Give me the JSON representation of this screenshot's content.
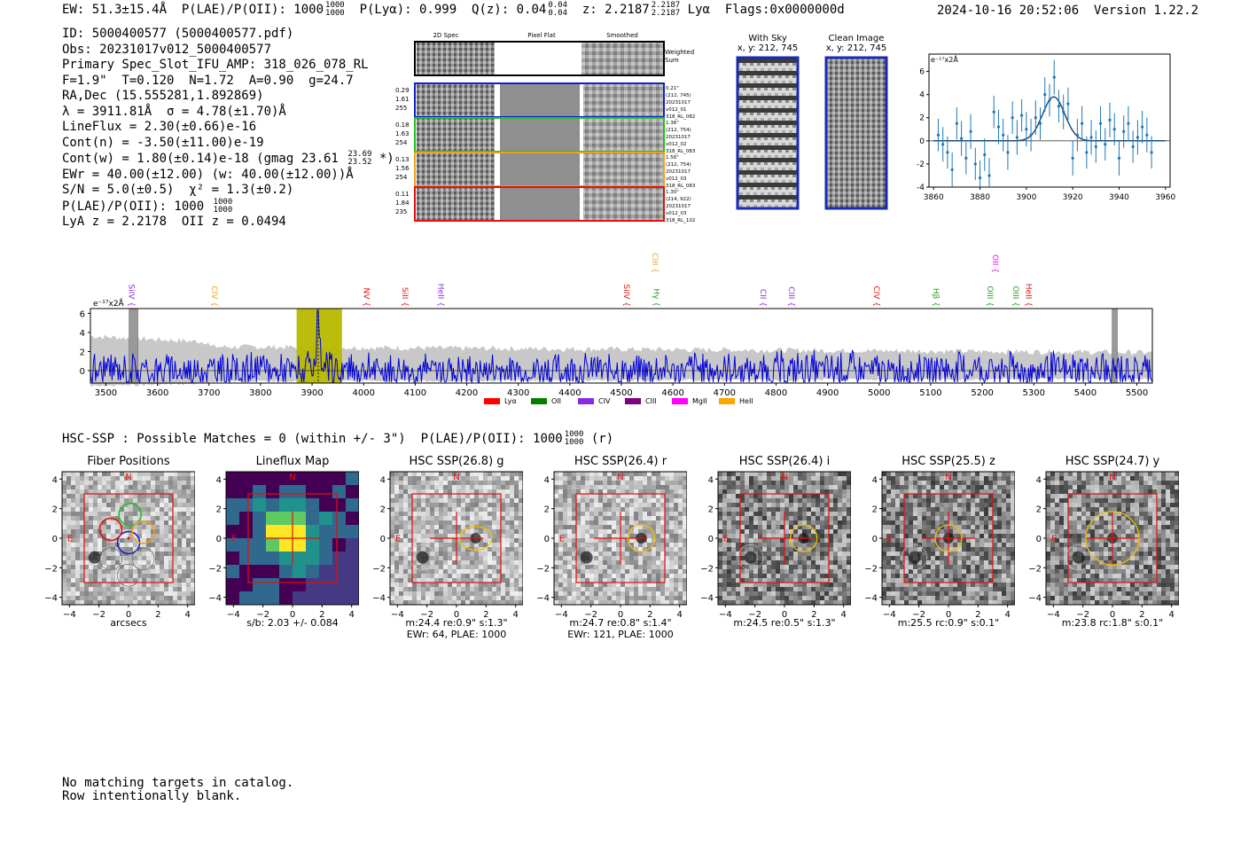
{
  "header": {
    "ew_text": "EW: 51.3±15.4Å",
    "plae_label": "P(LAE)/P(OII): 1000",
    "plae_hi": "1000",
    "plae_lo": "1000",
    "plya_text": "P(Lyα): 0.999",
    "qz_label": "Q(z): 0.04",
    "qz_hi": "0.04",
    "qz_lo": "0.04",
    "z_label": "z: 2.2187",
    "z_hi": "2.2187",
    "z_lo": "2.2187",
    "line_name": "Lyα",
    "flags": "Flags:0x0000000d",
    "datetime": "2024-10-16 20:52:06",
    "version": "Version 1.22.2"
  },
  "info": {
    "id": "ID: 5000400577 (5000400577.pdf)",
    "obs": "Obs: 20231017v012_5000400577",
    "primary": "Primary Spec_Slot_IFU_AMP: 318_026_078_RL",
    "fit": "F=1.9\"  T=0.120  N=1.72  A=0.90  g=24.7",
    "radec": "RA,Dec (15.555281,1.892869)",
    "wave": "λ = 3911.81Å  σ = 4.78(±1.70)Å",
    "lineflux": "LineFlux = 2.30(±0.66)e-16",
    "contn": "Cont(n) = -3.50(±11.00)e-19",
    "contw": "Cont(w) = 1.80(±0.14)e-18 (gmag 23.61",
    "gmag_hi": "23.69",
    "gmag_lo": "23.52",
    "contw_end": "*)",
    "ewr": "EWr = 40.00(±12.00) (w: 40.00(±12.00))Å",
    "sn": "S/N = 5.0(±0.5)  χ² = 1.3(±0.2)",
    "plae": "P(LAE)/P(OII): 1000",
    "plae_hi": "1000",
    "plae_lo": "1000",
    "lyaz": "LyA z = 2.2178  OII z = 0.0494"
  },
  "cutouts": {
    "col_headers": [
      "2D Spec",
      "Pixel Flat",
      "Smoothed"
    ],
    "weighted_label": "Weighted\nSum",
    "rows": [
      {
        "left": [
          "0.29",
          "1.61",
          "255"
        ],
        "right": [
          "0.21\"",
          "(212, 745)",
          "20231017",
          "v012_01",
          "318_RL_082"
        ],
        "color": "#1020c8"
      },
      {
        "left": [
          "0.18",
          "1.63",
          "254"
        ],
        "right": [
          "1.36\"",
          "(212, 754)",
          "20231017",
          "v012_02",
          "318_RL_083"
        ],
        "color": "#20c020"
      },
      {
        "left": [
          "0.13",
          "1.56",
          "254"
        ],
        "right": [
          "1.56\"",
          "(212, 754)",
          "20231017",
          "v012_03",
          "318_RL_083"
        ],
        "color": "#f0a020"
      },
      {
        "left": [
          "0.11",
          "1.84",
          "235"
        ],
        "right": [
          "1.30\"",
          "(214, 922)",
          "20231017",
          "v012_03",
          "318_RL_102"
        ],
        "color": "#e01010"
      }
    ]
  },
  "sky_panels": {
    "with_sky_title": "With Sky",
    "with_sky_coords": "x, y: 212, 745",
    "clean_title": "Clean Image",
    "clean_coords": "x, y: 212, 745"
  },
  "chart_data": [
    {
      "type": "scatter",
      "name": "line-fit-zoom",
      "ylabel": "e⁻¹⁷x2Å",
      "xlim": [
        3858,
        3962
      ],
      "ylim": [
        -4,
        7.5
      ],
      "xticks": [
        3860,
        3880,
        3900,
        3920,
        3940,
        3960
      ],
      "yticks": [
        -4,
        -2,
        0,
        2,
        4,
        6
      ],
      "points": [
        {
          "x": 3862,
          "y": 0.5,
          "err": 1.4
        },
        {
          "x": 3864,
          "y": -0.3,
          "err": 1.5
        },
        {
          "x": 3866,
          "y": -1.0,
          "err": 1.4
        },
        {
          "x": 3868,
          "y": -2.5,
          "err": 1.5
        },
        {
          "x": 3870,
          "y": 1.5,
          "err": 1.4
        },
        {
          "x": 3872,
          "y": 0.2,
          "err": 1.5
        },
        {
          "x": 3874,
          "y": -1.5,
          "err": 1.4
        },
        {
          "x": 3876,
          "y": 0.8,
          "err": 1.5
        },
        {
          "x": 3878,
          "y": -2.0,
          "err": 1.4
        },
        {
          "x": 3880,
          "y": -3.2,
          "err": 1.5
        },
        {
          "x": 3882,
          "y": -1.2,
          "err": 1.4
        },
        {
          "x": 3884,
          "y": -3.0,
          "err": 1.5
        },
        {
          "x": 3886,
          "y": 2.5,
          "err": 1.4
        },
        {
          "x": 3888,
          "y": 1.2,
          "err": 1.5
        },
        {
          "x": 3890,
          "y": 0.5,
          "err": 1.4
        },
        {
          "x": 3892,
          "y": -1.0,
          "err": 1.5
        },
        {
          "x": 3894,
          "y": 2.0,
          "err": 1.4
        },
        {
          "x": 3896,
          "y": 0.3,
          "err": 1.5
        },
        {
          "x": 3898,
          "y": 2.2,
          "err": 1.4
        },
        {
          "x": 3900,
          "y": 1.0,
          "err": 1.5
        },
        {
          "x": 3902,
          "y": 0.5,
          "err": 1.4
        },
        {
          "x": 3904,
          "y": 2.0,
          "err": 1.5
        },
        {
          "x": 3906,
          "y": 1.5,
          "err": 1.4
        },
        {
          "x": 3908,
          "y": 4.0,
          "err": 1.5
        },
        {
          "x": 3910,
          "y": 3.5,
          "err": 1.4
        },
        {
          "x": 3912,
          "y": 5.5,
          "err": 1.5
        },
        {
          "x": 3914,
          "y": 3.0,
          "err": 1.4
        },
        {
          "x": 3916,
          "y": 2.5,
          "err": 1.5
        },
        {
          "x": 3918,
          "y": 3.2,
          "err": 1.4
        },
        {
          "x": 3920,
          "y": -1.5,
          "err": 1.5
        },
        {
          "x": 3922,
          "y": 0.5,
          "err": 1.4
        },
        {
          "x": 3924,
          "y": 1.5,
          "err": 1.5
        },
        {
          "x": 3926,
          "y": -1.0,
          "err": 1.4
        },
        {
          "x": 3928,
          "y": 0.3,
          "err": 1.5
        },
        {
          "x": 3930,
          "y": -0.5,
          "err": 1.4
        },
        {
          "x": 3932,
          "y": 1.5,
          "err": 1.5
        },
        {
          "x": 3934,
          "y": -0.3,
          "err": 1.4
        },
        {
          "x": 3936,
          "y": 1.8,
          "err": 1.5
        },
        {
          "x": 3938,
          "y": 1.0,
          "err": 1.4
        },
        {
          "x": 3940,
          "y": -1.5,
          "err": 1.5
        },
        {
          "x": 3942,
          "y": 0.8,
          "err": 1.4
        },
        {
          "x": 3944,
          "y": 1.5,
          "err": 1.5
        },
        {
          "x": 3946,
          "y": -0.5,
          "err": 1.4
        },
        {
          "x": 3948,
          "y": 0.3,
          "err": 1.5
        },
        {
          "x": 3950,
          "y": 1.2,
          "err": 1.4
        },
        {
          "x": 3952,
          "y": 0.5,
          "err": 1.5
        },
        {
          "x": 3954,
          "y": -1.0,
          "err": 1.4
        }
      ],
      "fit": {
        "center": 3911.81,
        "sigma": 4.78,
        "amplitude": 3.8
      }
    },
    {
      "type": "line",
      "name": "full-spectrum",
      "ylabel": "e⁻¹⁷x2Å",
      "xlim": [
        3470,
        5530
      ],
      "ylim": [
        -1.3,
        6.5
      ],
      "xticks": [
        3500,
        3600,
        3700,
        3800,
        3900,
        4000,
        4100,
        4200,
        4300,
        4400,
        4500,
        4600,
        4700,
        4800,
        4900,
        5000,
        5100,
        5200,
        5300,
        5400,
        5500
      ],
      "yticks": [
        0,
        2,
        4,
        6
      ],
      "highlight_regions": [
        [
          3870,
          3958
        ]
      ],
      "masked_regions": [
        [
          3545,
          3562
        ],
        [
          5452,
          5462
        ]
      ],
      "line_center": 3911.81,
      "line_markers": [
        {
          "label": "SiIV",
          "x": 3540,
          "color": "#8a2be2",
          "tier": 1
        },
        {
          "label": "CIV",
          "x": 3700,
          "color": "#f0a020",
          "tier": 1
        },
        {
          "label": "NV",
          "x": 3995,
          "color": "#e01010",
          "tier": 1
        },
        {
          "label": "SiII",
          "x": 4070,
          "color": "#e01010",
          "tier": 1
        },
        {
          "label": "HeII",
          "x": 4140,
          "color": "#8a2be2",
          "tier": 1
        },
        {
          "label": "SiIV",
          "x": 4500,
          "color": "#e01010",
          "tier": 1
        },
        {
          "label": "CIII",
          "x": 4555,
          "color": "#f0a020",
          "tier": 0
        },
        {
          "label": "Hγ",
          "x": 4558,
          "color": "#20a020",
          "tier": 1
        },
        {
          "label": "CII",
          "x": 4765,
          "color": "#8a2be2",
          "tier": 1
        },
        {
          "label": "CIII",
          "x": 4820,
          "color": "#8a2be2",
          "tier": 1
        },
        {
          "label": "CIV",
          "x": 4985,
          "color": "#e01010",
          "tier": 1
        },
        {
          "label": "Hβ",
          "x": 5100,
          "color": "#20a020",
          "tier": 1
        },
        {
          "label": "OII",
          "x": 5215,
          "color": "#e010e0",
          "tier": 0
        },
        {
          "label": "OIII",
          "x": 5205,
          "color": "#20a020",
          "tier": 1
        },
        {
          "label": "OIII",
          "x": 5255,
          "color": "#20a020",
          "tier": 1
        },
        {
          "label": "HeII",
          "x": 5280,
          "color": "#e01010",
          "tier": 1
        }
      ],
      "legend": [
        {
          "label": "Lyα",
          "color": "#ff0000"
        },
        {
          "label": "OII",
          "color": "#008000"
        },
        {
          "label": "CIV",
          "color": "#8a2be2"
        },
        {
          "label": "CIII",
          "color": "#800080"
        },
        {
          "label": "MgII",
          "color": "#ff00ff"
        },
        {
          "label": "HeII",
          "color": "#ffa500"
        }
      ]
    }
  ],
  "hsc_line": {
    "text": "HSC-SSP : Possible Matches = 0 (within +/- 3\")  P(LAE)/P(OII): 1000",
    "plae_hi": "1000",
    "plae_lo": "1000",
    "suffix": "(r)"
  },
  "thumbs": [
    {
      "title": "Fiber Positions",
      "caption": [
        "arcsecs"
      ],
      "kind": "fiber"
    },
    {
      "title": "Lineflux Map",
      "caption": [
        "s/b: 2.03 +/- 0.084"
      ],
      "kind": "flux"
    },
    {
      "title": "HSC SSP(26.8) g",
      "caption": [
        "m:24.4  re:0.9\"  s:1.3\"",
        "EWr: 64, PLAE: 1000"
      ],
      "kind": "hsc",
      "ellipse": {
        "cx": 1.3,
        "cy": 0.0,
        "rx": 1.1,
        "ry": 0.8
      }
    },
    {
      "title": "HSC SSP(26.4) r",
      "caption": [
        "m:24.7  re:0.8\"  s:1.4\"",
        "EWr: 121, PLAE: 1000"
      ],
      "kind": "hsc",
      "ellipse": {
        "cx": 1.4,
        "cy": 0.0,
        "rx": 0.9,
        "ry": 0.9
      }
    },
    {
      "title": "HSC SSP(26.4) i",
      "caption": [
        "m:24.5  re:0.5\"  s:1.3\""
      ],
      "kind": "hsc",
      "ellipse": {
        "cx": 1.3,
        "cy": 0.0,
        "rx": 0.9,
        "ry": 0.9
      }
    },
    {
      "title": "HSC SSP(25.5) z",
      "caption": [
        "m:25.5  rc:0.9\"  s:0.1\""
      ],
      "kind": "hsc",
      "ellipse": {
        "cx": 0.0,
        "cy": 0.0,
        "rx": 0.9,
        "ry": 0.9
      }
    },
    {
      "title": "HSC SSP(24.7) y",
      "caption": [
        "m:23.8  rc:1.8\"  s:0.1\""
      ],
      "kind": "hsc",
      "ellipse": {
        "cx": 0.0,
        "cy": 0.0,
        "rx": 1.8,
        "ry": 1.8
      }
    }
  ],
  "thumb_axis": {
    "ticks": [
      -4,
      -2,
      0,
      2,
      4
    ],
    "north": "N",
    "east": "E"
  },
  "footer": {
    "line1": "No matching targets in catalog.",
    "line2": "Row intentionally blank."
  }
}
